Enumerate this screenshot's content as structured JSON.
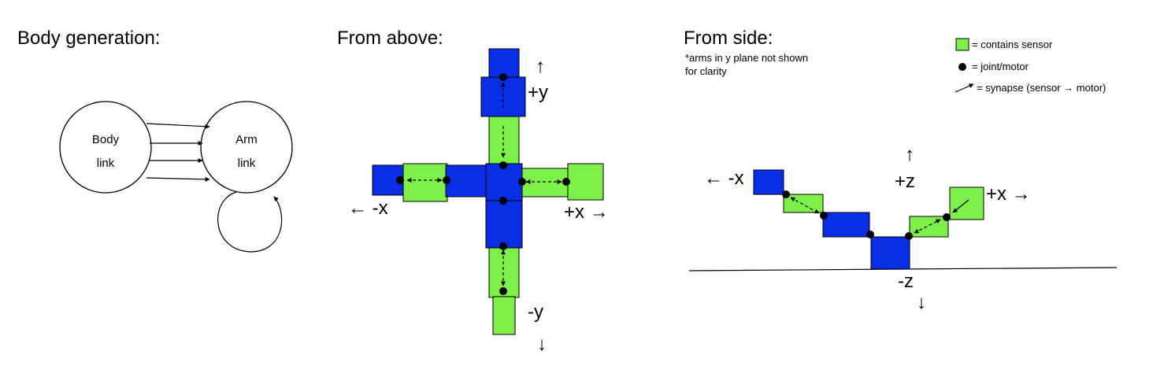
{
  "titles": {
    "body_generation": "Body generation:",
    "from_above": "From above:",
    "from_side": "From side:"
  },
  "graph": {
    "body_line1": "Body",
    "body_line2": "link",
    "arm_line1": "Arm",
    "arm_line2": "link",
    "edge_count_body_to_arm": 4,
    "self_loop_on": "Arm link"
  },
  "above_view": {
    "plus_y": "+y",
    "minus_y": "-y",
    "plus_x": "+x →",
    "minus_x": "← -x",
    "up_arrow": "↑",
    "down_arrow": "↓"
  },
  "side_view": {
    "note_line1": "*arms in y plane not shown",
    "note_line2": "for clarity",
    "plus_z": "+z",
    "minus_z": "-z",
    "plus_x": "+x →",
    "minus_x": "← -x",
    "up_arrow": "↑",
    "down_arrow": "↓"
  },
  "legend": {
    "sensor": "= contains sensor",
    "joint": "= joint/motor",
    "synapse": "= synapse (sensor → motor)"
  },
  "colors": {
    "blue": "#0a2ee6",
    "green": "#7ef04a",
    "outline": "#000000"
  }
}
